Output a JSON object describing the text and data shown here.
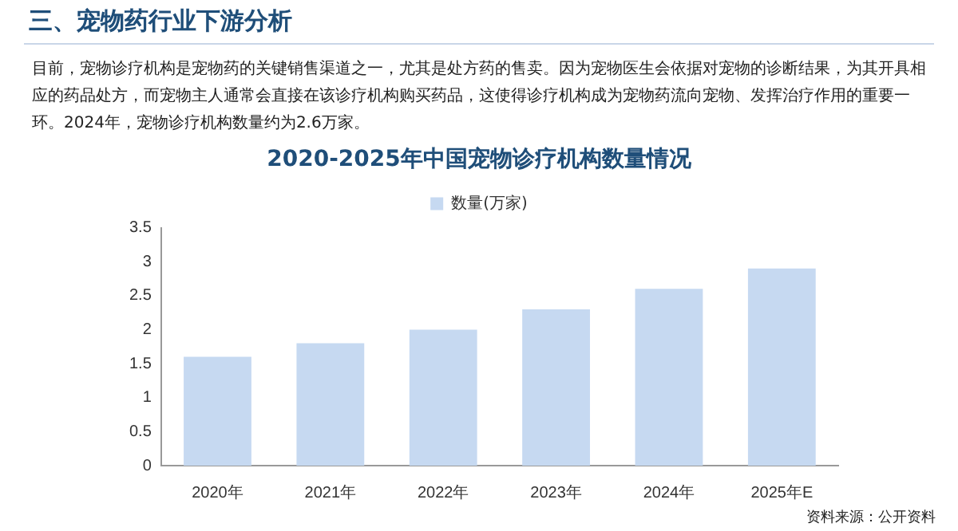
{
  "chart_data": {
    "type": "bar",
    "title": "2020-2025年中国宠物诊疗机构数量情况",
    "categories": [
      "2020年",
      "2021年",
      "2022年",
      "2023年",
      "2024年",
      "2025年E"
    ],
    "series": [
      {
        "name": "数量(万家)",
        "color": "#c6d9f1",
        "values": [
          1.6,
          1.8,
          2.0,
          2.3,
          2.6,
          2.9
        ]
      }
    ],
    "ylim": [
      0,
      3.5
    ],
    "yticks": [
      0,
      0.5,
      1,
      1.5,
      2,
      2.5,
      3,
      3.5
    ],
    "grid": false,
    "legend": "top",
    "annotations": [
      "三、宠物药行业下游分析",
      "目前，宠物诊疗机构是宠物药的关键销售渠道之一，尤其是处方药的售卖。因为宠物医生会依据对宠物的诊断结果，为其开具相应的药品处方，而宠物主人通常会直接在该诊疗机构购买药品，这使得诊疗机构成为宠物药流向宠物、发挥治疗作用的重要一环。2024年，宠物诊疗机构数量约为2.6万家。",
      "资料来源：公开资料"
    ]
  }
}
